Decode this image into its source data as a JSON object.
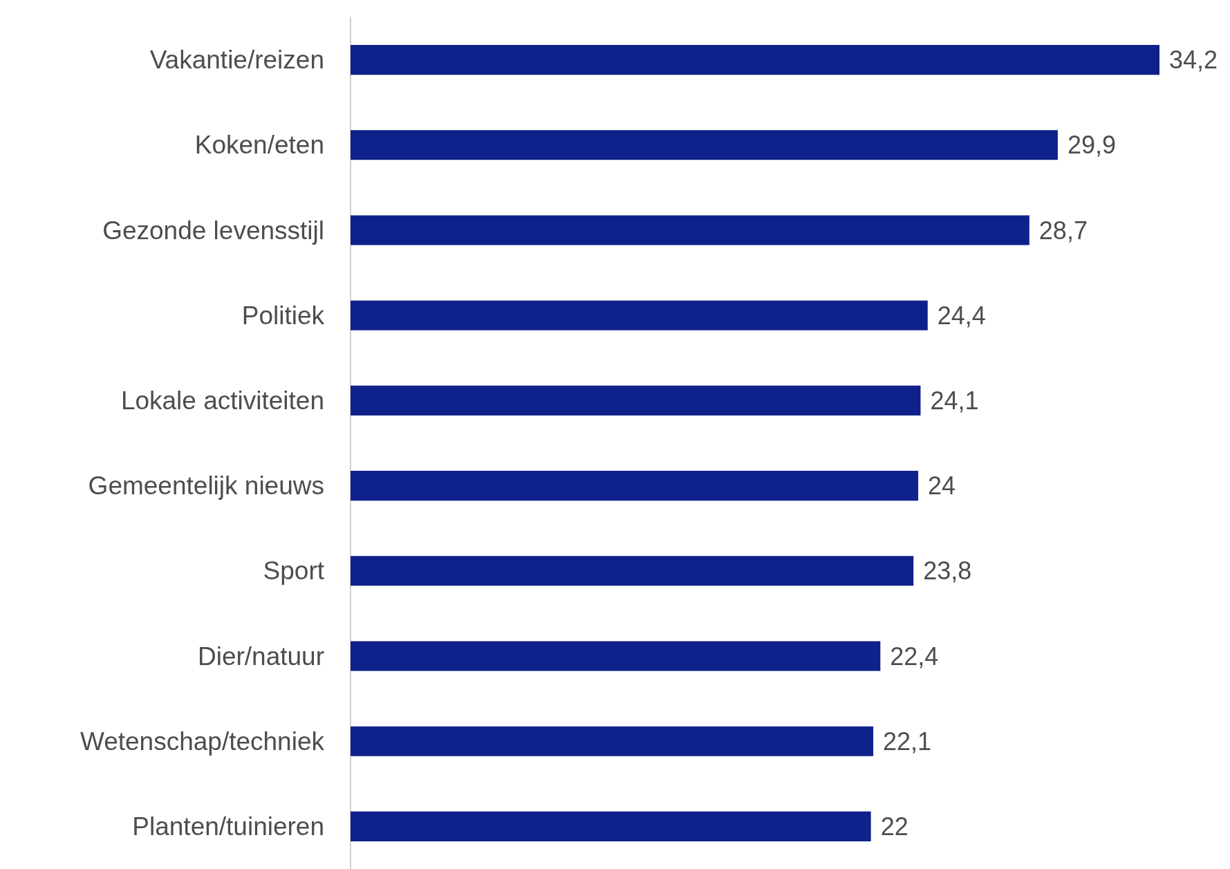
{
  "chart_data": {
    "type": "bar",
    "orientation": "horizontal",
    "categories": [
      "Vakantie/reizen",
      "Koken/eten",
      "Gezonde levensstijl",
      "Politiek",
      "Lokale activiteiten",
      "Gemeentelijk nieuws",
      "Sport",
      "Dier/natuur",
      "Wetenschap/techniek",
      "Planten/tuinieren"
    ],
    "values": [
      34.2,
      29.9,
      28.7,
      24.4,
      24.1,
      24,
      23.8,
      22.4,
      22.1,
      22
    ],
    "value_labels": [
      "34,2",
      "29,9",
      "28,7",
      "24,4",
      "24,1",
      "24",
      "23,8",
      "22,4",
      "22,1",
      "22"
    ],
    "color": "#0f218a"
  }
}
